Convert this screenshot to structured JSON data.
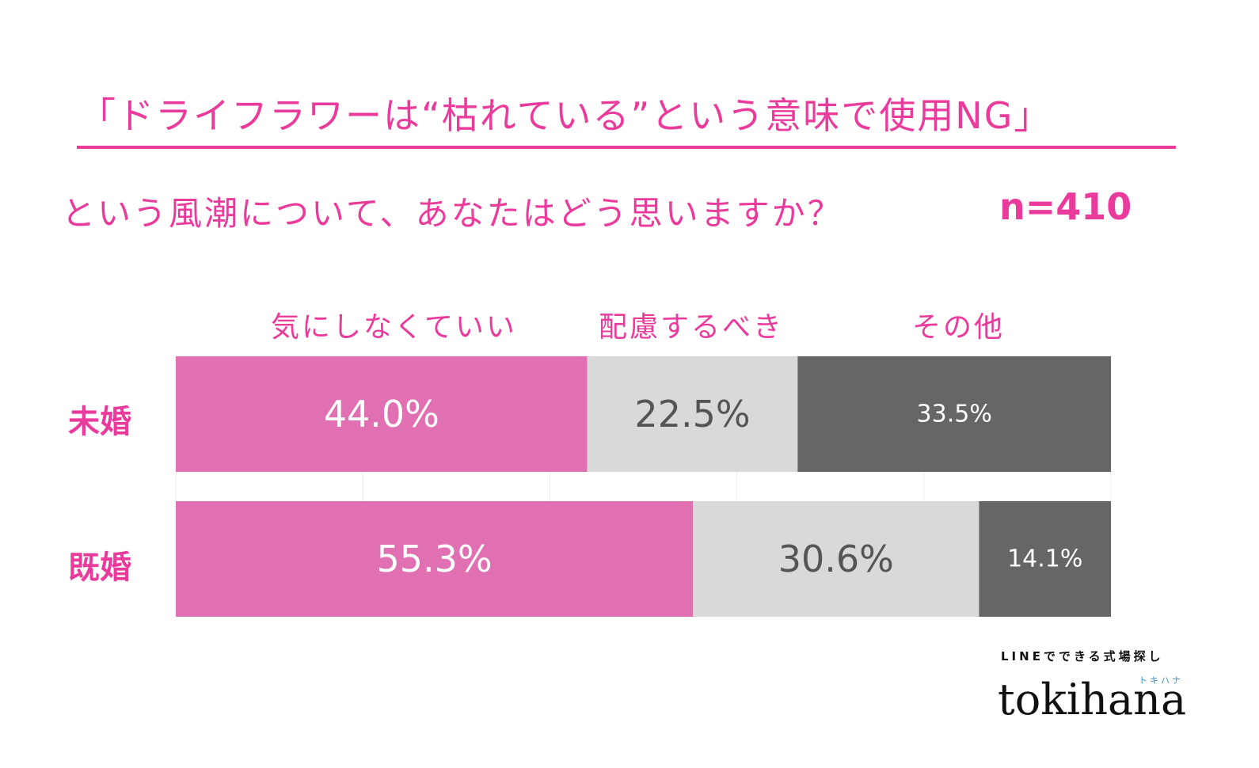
{
  "header": {
    "title": "「ドライフラワーは“枯れている”という意味で使用NG」",
    "subtitle": "という風潮について、あなたはどう思いますか？",
    "sample": "n=410"
  },
  "chart_data": {
    "type": "bar",
    "stacked": true,
    "orientation": "horizontal",
    "percent_stacked": true,
    "categories": [
      "未婚",
      "既婚"
    ],
    "series": [
      {
        "name": "気にしなくていい",
        "values": [
          44.0,
          55.3
        ],
        "labels": [
          "44.0%",
          "55.3%"
        ],
        "color": "#e070b2",
        "text_color": "#ffffff"
      },
      {
        "name": "配慮するべき",
        "values": [
          22.5,
          30.6
        ],
        "labels": [
          "22.5%",
          "30.6%"
        ],
        "color": "#d9d9d9",
        "text_color": "#555555"
      },
      {
        "name": "その他",
        "values": [
          33.5,
          14.1
        ],
        "labels": [
          "33.5%",
          "14.1%"
        ],
        "color": "#666666",
        "text_color": "#ffffff"
      }
    ],
    "xlim": [
      0,
      100
    ],
    "grid": true,
    "legend_position": "top"
  },
  "brand": {
    "tagline": "LINEでできる式場探し",
    "kana": "トキハナ",
    "logo": "tokihana"
  },
  "colors": {
    "accent": "#ea3a9c"
  }
}
